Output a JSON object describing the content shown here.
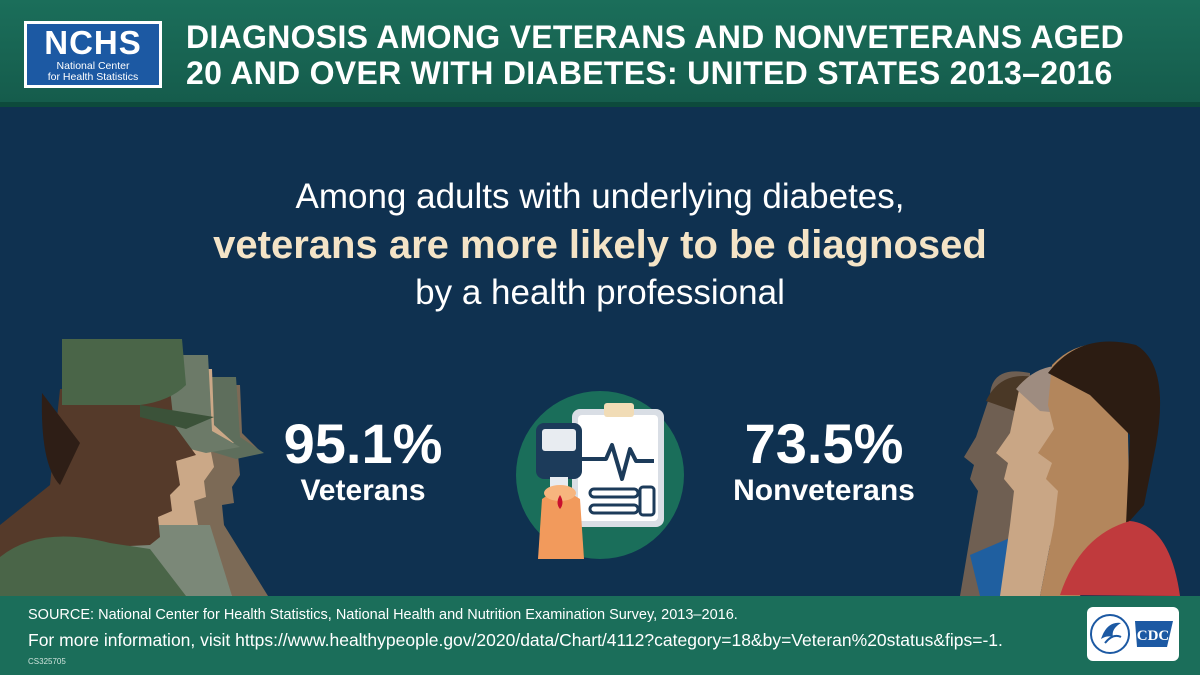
{
  "header": {
    "logo_abbr": "NCHS",
    "logo_name_line1": "National Center",
    "logo_name_line2": "for Health Statistics",
    "title_line1": "DIAGNOSIS AMONG VETERANS AND NONVETERANS AGED",
    "title_line2": "20 AND OVER WITH DIABETES: UNITED STATES 2013–2016"
  },
  "headline": {
    "line1": "Among adults with underlying diabetes,",
    "line2": "veterans are more likely to be diagnosed",
    "line3": "by a health professional"
  },
  "stats": {
    "veterans": {
      "value": "95.1%",
      "label": "Veterans"
    },
    "nonveterans": {
      "value": "73.5%",
      "label": "Nonveterans"
    }
  },
  "footer": {
    "source": "SOURCE: National Center for Health Statistics, National Health and Nutrition Examination Survey, 2013–2016.",
    "more_info": "For more information, visit https://www.healthypeople.gov/2020/data/Chart/4112?category=18&by=Veteran%20status&fips=-1.",
    "code": "CS325705",
    "cdc_text": "CDC"
  },
  "colors": {
    "header_bg": "#1b6e5a",
    "main_bg": "#0f3150",
    "highlight_text": "#f4e4c7",
    "logo_blue": "#1c59a3"
  },
  "icons": [
    "glucose-meter-icon",
    "hhs-eagle-icon",
    "cdc-logo-icon"
  ]
}
